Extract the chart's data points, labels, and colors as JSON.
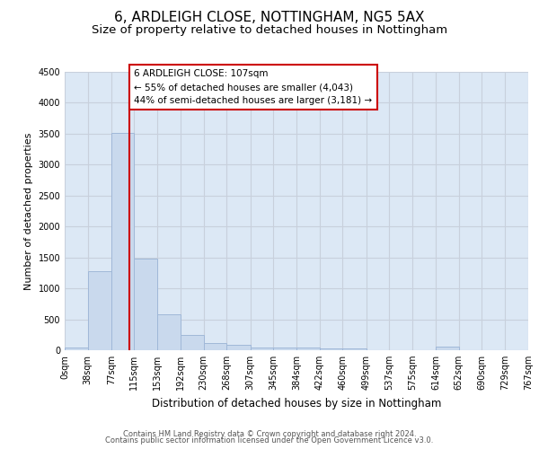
{
  "title1": "6, ARDLEIGH CLOSE, NOTTINGHAM, NG5 5AX",
  "title2": "Size of property relative to detached houses in Nottingham",
  "xlabel": "Distribution of detached houses by size in Nottingham",
  "ylabel": "Number of detached properties",
  "footer1": "Contains HM Land Registry data © Crown copyright and database right 2024.",
  "footer2": "Contains public sector information licensed under the Open Government Licence v3.0.",
  "bin_edges": [
    0,
    38,
    77,
    115,
    153,
    192,
    230,
    268,
    307,
    345,
    384,
    422,
    460,
    499,
    537,
    575,
    614,
    652,
    690,
    729,
    767
  ],
  "bin_labels": [
    "0sqm",
    "38sqm",
    "77sqm",
    "115sqm",
    "153sqm",
    "192sqm",
    "230sqm",
    "268sqm",
    "307sqm",
    "345sqm",
    "384sqm",
    "422sqm",
    "460sqm",
    "499sqm",
    "537sqm",
    "575sqm",
    "614sqm",
    "652sqm",
    "690sqm",
    "729sqm",
    "767sqm"
  ],
  "bar_heights": [
    40,
    1280,
    3510,
    1480,
    580,
    240,
    115,
    80,
    50,
    50,
    50,
    30,
    30,
    0,
    0,
    0,
    60,
    0,
    0,
    0
  ],
  "bar_color": "#c9d9ed",
  "bar_edgecolor": "#a0b8d8",
  "grid_color": "#c8d0dc",
  "property_size": 107,
  "marker_line_color": "#cc0000",
  "annotation_text": "6 ARDLEIGH CLOSE: 107sqm\n← 55% of detached houses are smaller (4,043)\n44% of semi-detached houses are larger (3,181) →",
  "annotation_box_color": "#ffffff",
  "annotation_border_color": "#cc0000",
  "ylim": [
    0,
    4500
  ],
  "yticks": [
    0,
    500,
    1000,
    1500,
    2000,
    2500,
    3000,
    3500,
    4000,
    4500
  ],
  "bg_color": "#dce8f5",
  "title1_fontsize": 11,
  "title2_fontsize": 9.5,
  "xlabel_fontsize": 8.5,
  "ylabel_fontsize": 8,
  "tick_fontsize": 7,
  "footer_fontsize": 6,
  "annotation_fontsize": 7.5
}
